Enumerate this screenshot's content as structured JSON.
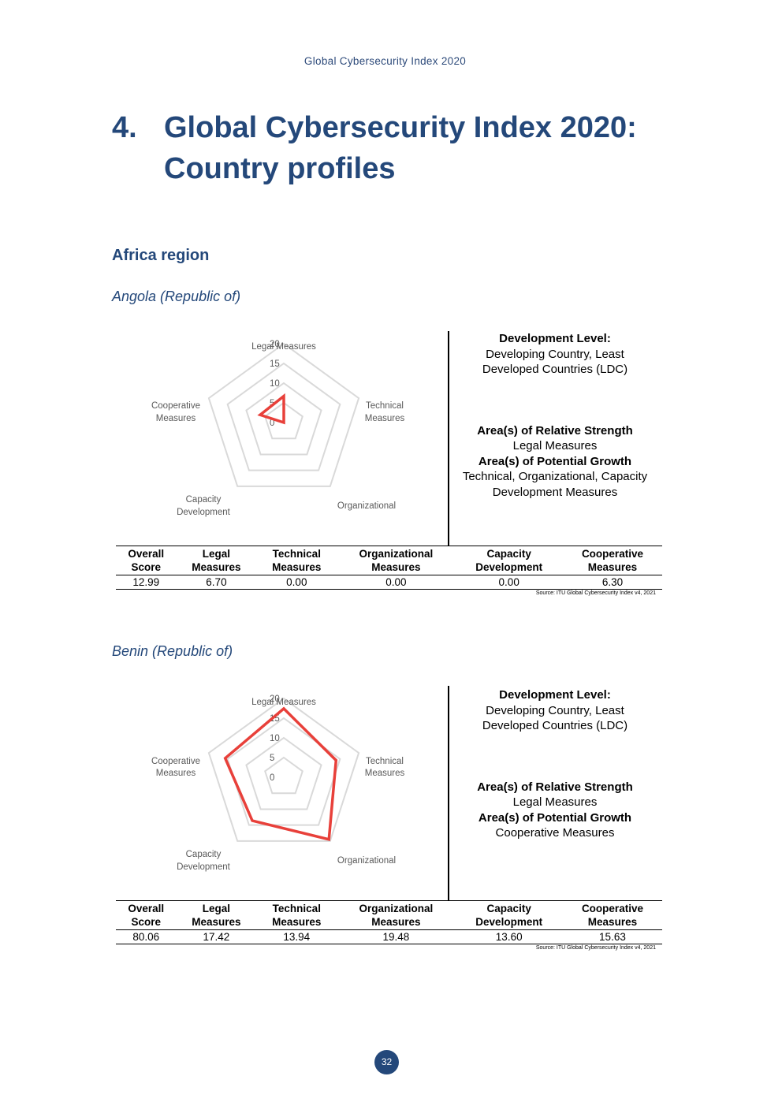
{
  "header": {
    "running_title": "Global Cybersecurity Index 2020"
  },
  "chapter": {
    "number": "4.",
    "title": "Global Cybersecurity Index 2020: Country profiles"
  },
  "region": "Africa region",
  "radar_scale": [
    0,
    5,
    10,
    15,
    20
  ],
  "axis_labels": {
    "legal": "Legal Measures",
    "technical_1": "Technical",
    "technical_2": "Measures",
    "organizational": "Organizational",
    "capacity_1": "Capacity",
    "capacity_2": "Development",
    "cooperative_1": "Cooperative",
    "cooperative_2": "Measures"
  },
  "table_headers": {
    "overall_1": "Overall",
    "overall_2": "Score",
    "legal_1": "Legal",
    "legal_2": "Measures",
    "technical_1": "Technical",
    "technical_2": "Measures",
    "organizational_1": "Organizational",
    "organizational_2": "Measures",
    "capacity_1": "Capacity",
    "capacity_2": "Development",
    "cooperative_1": "Cooperative",
    "cooperative_2": "Measures"
  },
  "source": "Source: ITU Global Cybersecurity Index v4, 2021",
  "labels": {
    "development_level": "Development Level:",
    "relative_strength": "Area(s) of Relative Strength",
    "potential_growth": "Area(s) of Potential Growth"
  },
  "profiles": [
    {
      "country": "Angola (Republic of)",
      "development_1": "Developing Country, Least",
      "development_2": "Developed Countries (LDC)",
      "strength": "Legal Measures",
      "growth_1": "Technical, Organizational, Capacity",
      "growth_2": "Development Measures",
      "scores": {
        "overall": "12.99",
        "legal": "6.70",
        "technical": "0.00",
        "organizational": "0.00",
        "capacity": "0.00",
        "cooperative": "6.30"
      }
    },
    {
      "country": "Benin (Republic of)",
      "development_1": "Developing Country, Least",
      "development_2": "Developed Countries (LDC)",
      "strength": "Legal Measures",
      "growth_1": "Cooperative Measures",
      "growth_2": "",
      "scores": {
        "overall": "80.06",
        "legal": "17.42",
        "technical": "13.94",
        "organizational": "19.48",
        "capacity": "13.60",
        "cooperative": "15.63"
      }
    }
  ],
  "chart_data": [
    {
      "type": "radar",
      "title": "",
      "categories": [
        "Legal Measures",
        "Technical Measures",
        "Organizational",
        "Capacity Development",
        "Cooperative Measures"
      ],
      "series": [
        {
          "values": [
            6.7,
            0.0,
            0.0,
            0.0,
            6.3
          ]
        }
      ],
      "ylim": [
        0,
        20
      ],
      "ticks": [
        0,
        5,
        10,
        15,
        20
      ],
      "color": "#e8403a",
      "grid_color": "#d9d9d9"
    },
    {
      "type": "radar",
      "title": "",
      "categories": [
        "Legal Measures",
        "Technical Measures",
        "Organizational",
        "Capacity Development",
        "Cooperative Measures"
      ],
      "series": [
        {
          "values": [
            17.42,
            13.94,
            19.48,
            13.6,
            15.63
          ]
        }
      ],
      "ylim": [
        0,
        20
      ],
      "ticks": [
        0,
        5,
        10,
        15,
        20
      ],
      "color": "#e8403a",
      "grid_color": "#d9d9d9"
    }
  ],
  "footer": {
    "page_number": "32"
  }
}
